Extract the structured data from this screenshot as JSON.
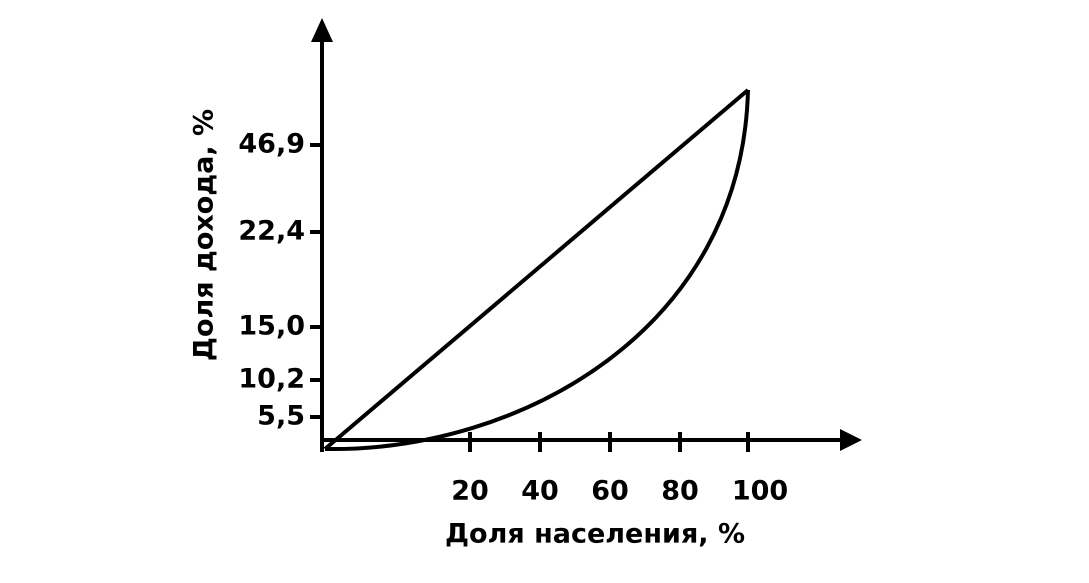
{
  "y_axis": {
    "title": "Доля дохода, %",
    "ticks": [
      "5,5",
      "10,2",
      "15,0",
      "22,4",
      "46,9"
    ]
  },
  "x_axis": {
    "title": "Доля населения, %",
    "ticks": [
      "20",
      "40",
      "60",
      "80",
      "100"
    ]
  }
}
